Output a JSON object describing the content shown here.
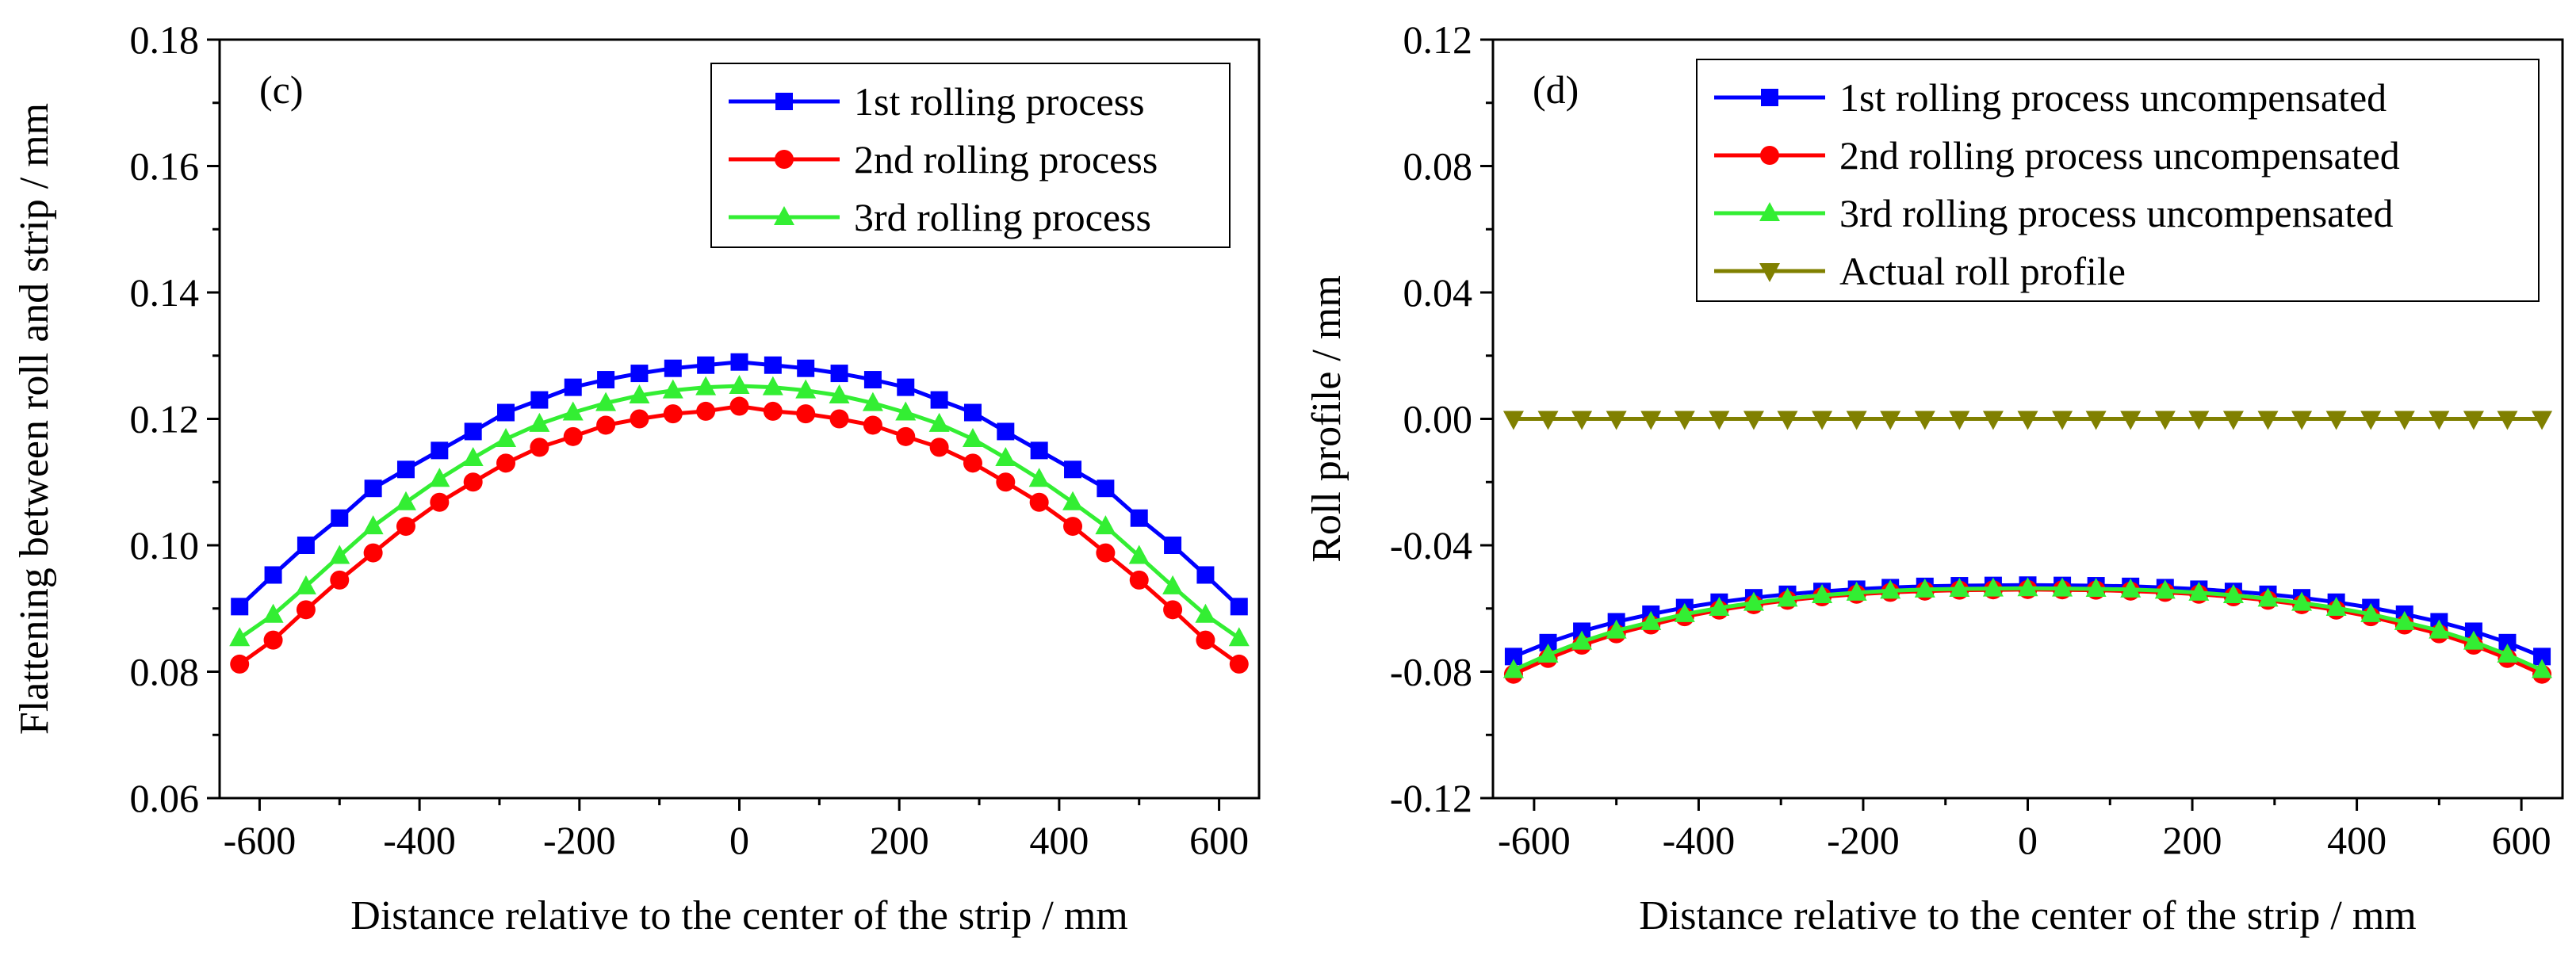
{
  "chart_data": [
    {
      "type": "line",
      "panel_label": "(c)",
      "xlabel": "Distance relative to the center of the strip / mm",
      "ylabel": "Flattening between roll and strip / mm",
      "xlim": [
        -650,
        650
      ],
      "ylim": [
        0.06,
        0.18
      ],
      "xticks": [
        -600,
        -400,
        -200,
        0,
        200,
        400,
        600
      ],
      "xtick_labels": [
        "-600",
        "-400",
        "-200",
        "0",
        "200",
        "400",
        "600"
      ],
      "yticks": [
        0.06,
        0.08,
        0.1,
        0.12,
        0.14,
        0.16,
        0.18
      ],
      "ytick_labels": [
        "0.06",
        "0.08",
        "0.10",
        "0.12",
        "0.14",
        "0.16",
        "0.18"
      ],
      "legend_position": "top-right",
      "x": [
        -625,
        -583,
        -542,
        -500,
        -458,
        -417,
        -375,
        -333,
        -292,
        -250,
        -208,
        -167,
        -125,
        -83,
        -42,
        0,
        42,
        83,
        125,
        167,
        208,
        250,
        292,
        333,
        375,
        417,
        458,
        500,
        542,
        583,
        625
      ],
      "series": [
        {
          "name": "1st rolling process",
          "color": "#0000ff",
          "marker": "square",
          "values": [
            0.0903,
            0.0953,
            0.1,
            0.1043,
            0.109,
            0.112,
            0.115,
            0.118,
            0.121,
            0.123,
            0.125,
            0.1262,
            0.1272,
            0.128,
            0.1285,
            0.129,
            0.1285,
            0.128,
            0.1272,
            0.1262,
            0.125,
            0.123,
            0.121,
            0.118,
            0.115,
            0.112,
            0.109,
            0.1043,
            0.1,
            0.0953,
            0.0903
          ]
        },
        {
          "name": "2nd rolling process",
          "color": "#ff0000",
          "marker": "circle",
          "values": [
            0.0812,
            0.085,
            0.0898,
            0.0945,
            0.0988,
            0.103,
            0.1068,
            0.11,
            0.113,
            0.1155,
            0.1172,
            0.119,
            0.12,
            0.1208,
            0.1212,
            0.122,
            0.1212,
            0.1208,
            0.12,
            0.119,
            0.1172,
            0.1155,
            0.113,
            0.11,
            0.1068,
            0.103,
            0.0988,
            0.0945,
            0.0898,
            0.085,
            0.0812
          ]
        },
        {
          "name": "3rd rolling process",
          "color": "#33ee33",
          "marker": "triangle-up",
          "values": [
            0.0853,
            0.089,
            0.0935,
            0.0983,
            0.103,
            0.1068,
            0.1105,
            0.1138,
            0.1168,
            0.1192,
            0.121,
            0.1225,
            0.1237,
            0.1245,
            0.125,
            0.1252,
            0.125,
            0.1245,
            0.1237,
            0.1225,
            0.121,
            0.1192,
            0.1168,
            0.1138,
            0.1105,
            0.1068,
            0.103,
            0.0983,
            0.0935,
            0.089,
            0.0853
          ]
        }
      ]
    },
    {
      "type": "line",
      "panel_label": "(d)",
      "xlabel": "Distance relative to the center of the strip / mm",
      "ylabel": "Roll profile / mm",
      "xlim": [
        -650,
        650
      ],
      "ylim": [
        -0.12,
        0.12
      ],
      "xticks": [
        -600,
        -400,
        -200,
        0,
        200,
        400,
        600
      ],
      "xtick_labels": [
        "-600",
        "-400",
        "-200",
        "0",
        "200",
        "400",
        "600"
      ],
      "yticks": [
        -0.12,
        -0.08,
        -0.04,
        0.0,
        0.04,
        0.08,
        0.12
      ],
      "ytick_labels": [
        "-0.12",
        "-0.08",
        "-0.04",
        "0.00",
        "0.04",
        "0.08",
        "0.12"
      ],
      "legend_position": "top-right",
      "x": [
        -625,
        -583,
        -542,
        -500,
        -458,
        -417,
        -375,
        -333,
        -292,
        -250,
        -208,
        -167,
        -125,
        -83,
        -42,
        0,
        42,
        83,
        125,
        167,
        208,
        250,
        292,
        333,
        375,
        417,
        458,
        500,
        542,
        583,
        625
      ],
      "series": [
        {
          "name": "1st rolling process uncompensated",
          "color": "#0000ff",
          "marker": "square",
          "values": [
            -0.0752,
            -0.0708,
            -0.0672,
            -0.0642,
            -0.0618,
            -0.0597,
            -0.058,
            -0.0566,
            -0.0555,
            -0.0546,
            -0.0539,
            -0.0534,
            -0.053,
            -0.0528,
            -0.0527,
            -0.0526,
            -0.0527,
            -0.0528,
            -0.053,
            -0.0534,
            -0.0539,
            -0.0546,
            -0.0555,
            -0.0566,
            -0.058,
            -0.0597,
            -0.0618,
            -0.0642,
            -0.0672,
            -0.0708,
            -0.0752
          ]
        },
        {
          "name": "2nd rolling process uncompensated",
          "color": "#ff0000",
          "marker": "circle",
          "values": [
            -0.0808,
            -0.0758,
            -0.0716,
            -0.068,
            -0.0652,
            -0.0626,
            -0.0605,
            -0.0588,
            -0.0574,
            -0.0563,
            -0.0555,
            -0.0549,
            -0.0545,
            -0.0542,
            -0.0541,
            -0.054,
            -0.0541,
            -0.0542,
            -0.0545,
            -0.0549,
            -0.0555,
            -0.0563,
            -0.0574,
            -0.0588,
            -0.0605,
            -0.0626,
            -0.0652,
            -0.068,
            -0.0716,
            -0.0758,
            -0.0808
          ]
        },
        {
          "name": "3rd rolling process uncompensated",
          "color": "#33ee33",
          "marker": "triangle-up",
          "values": [
            -0.0795,
            -0.0746,
            -0.0705,
            -0.067,
            -0.0643,
            -0.0618,
            -0.0598,
            -0.0582,
            -0.0569,
            -0.0558,
            -0.055,
            -0.0544,
            -0.054,
            -0.0538,
            -0.0537,
            -0.0536,
            -0.0537,
            -0.0538,
            -0.054,
            -0.0544,
            -0.055,
            -0.0558,
            -0.0569,
            -0.0582,
            -0.0598,
            -0.0618,
            -0.0643,
            -0.067,
            -0.0705,
            -0.0746,
            -0.0795
          ]
        },
        {
          "name": "Actual roll profile",
          "color": "#808000",
          "marker": "triangle-down",
          "values": [
            0,
            0,
            0,
            0,
            0,
            0,
            0,
            0,
            0,
            0,
            0,
            0,
            0,
            0,
            0,
            0,
            0,
            0,
            0,
            0,
            0,
            0,
            0,
            0,
            0,
            0,
            0,
            0,
            0,
            0,
            0
          ]
        }
      ]
    }
  ]
}
